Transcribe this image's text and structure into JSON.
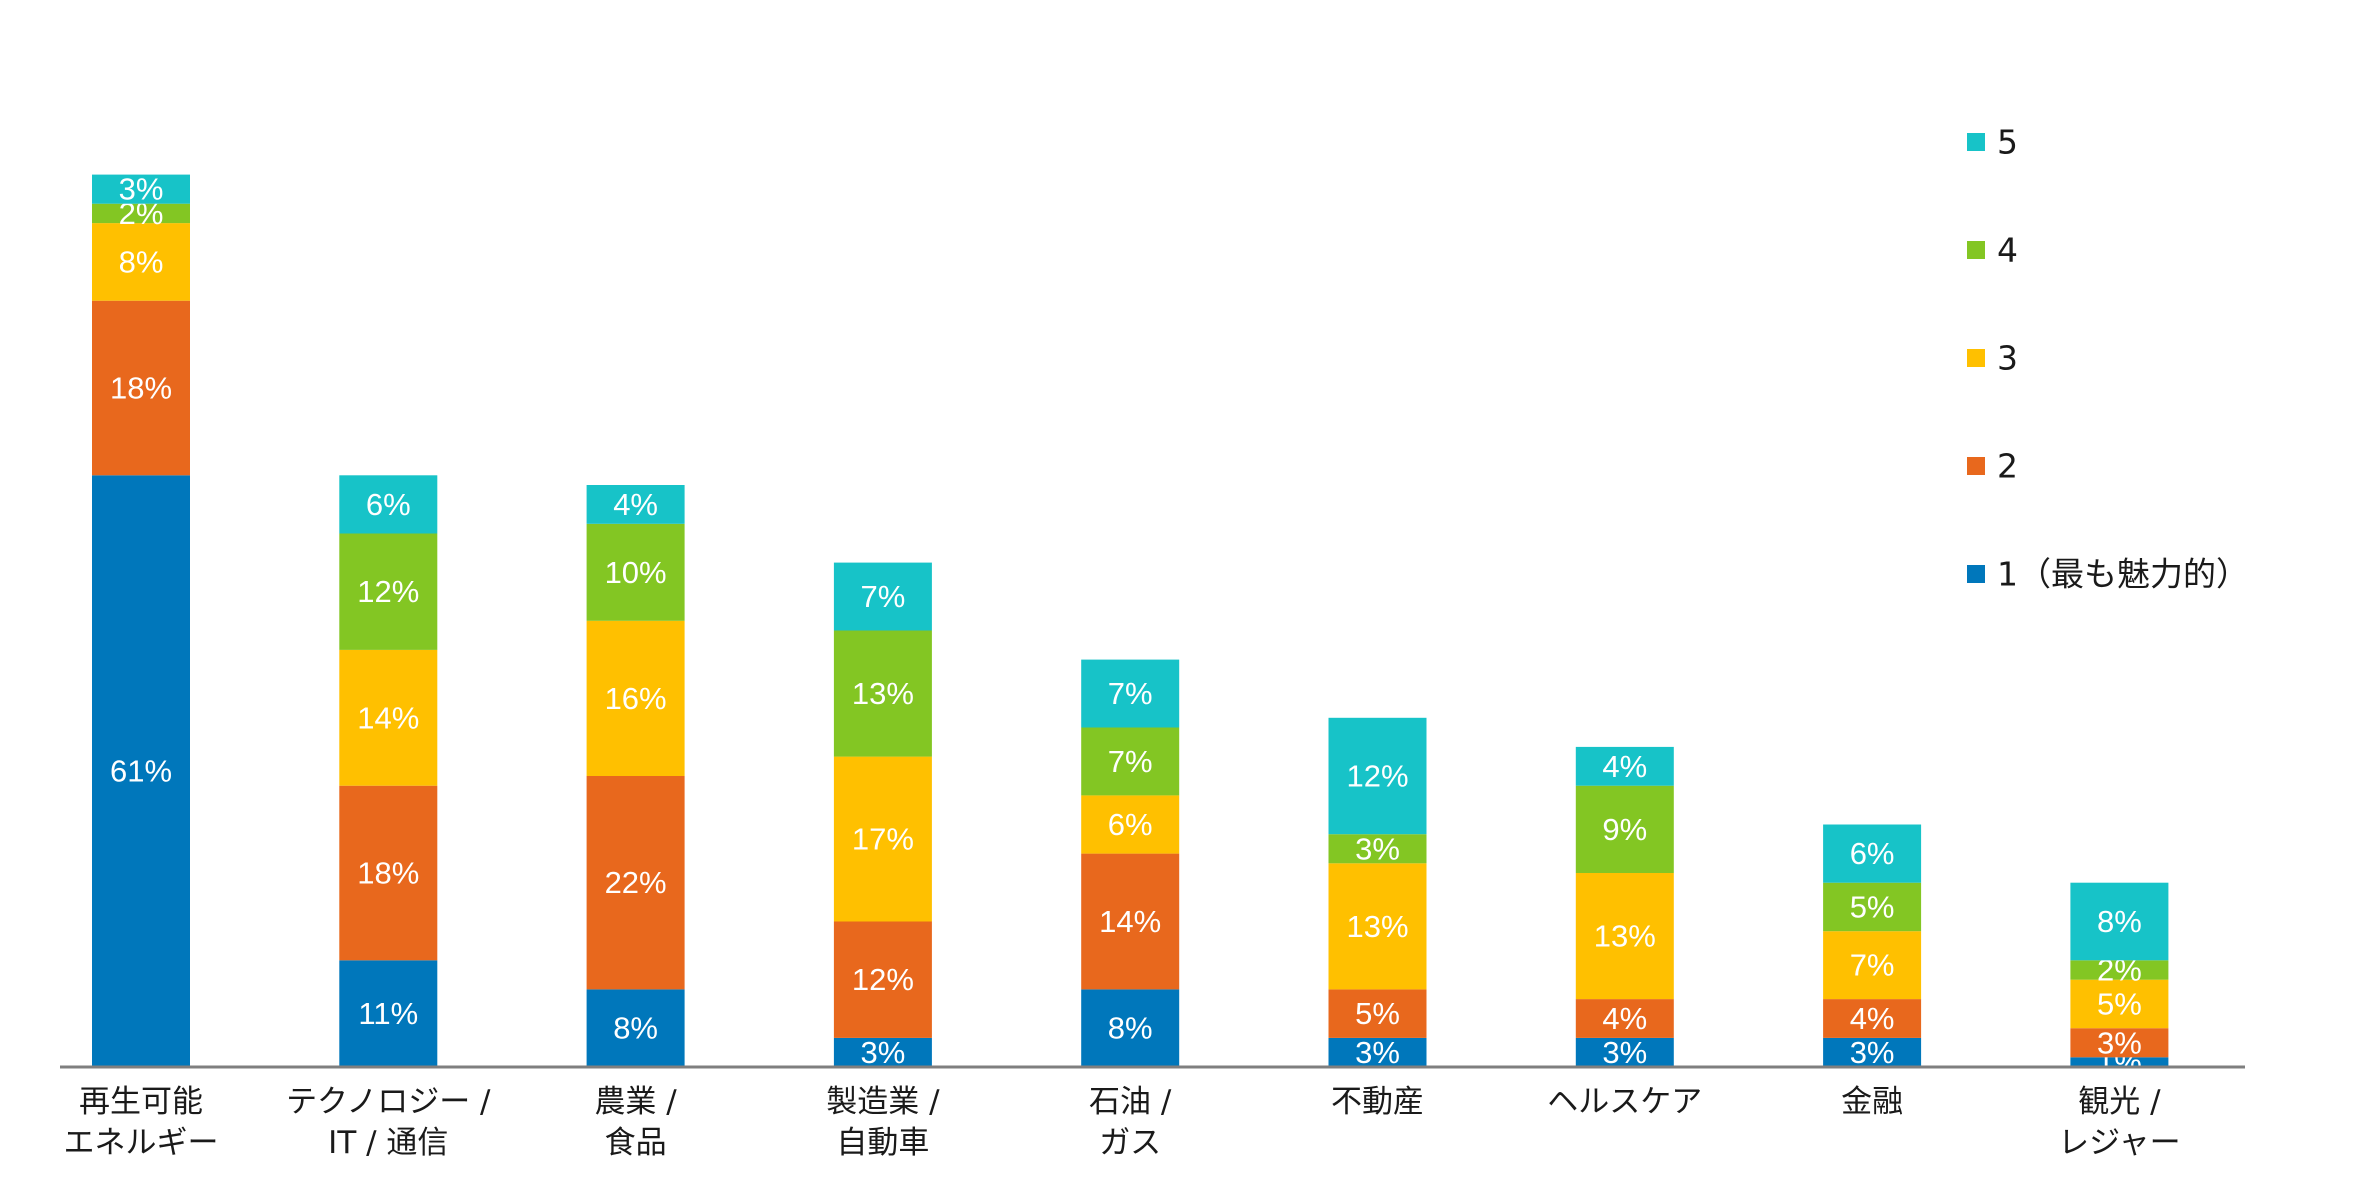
{
  "chart_data": {
    "type": "bar",
    "stacked": true,
    "title": "",
    "xlabel": "",
    "ylabel": "",
    "ylim": [
      0,
      100
    ],
    "categories": [
      [
        "再生可能",
        "エネルギー"
      ],
      [
        "テクノロジー /",
        "IT / 通信"
      ],
      [
        "農業 /",
        "食品"
      ],
      [
        "製造業 /",
        "自動車"
      ],
      [
        "石油 /",
        "ガス"
      ],
      [
        "不動産"
      ],
      [
        "ヘルスケア"
      ],
      [
        "金融"
      ],
      [
        "観光 /",
        "レジャー"
      ]
    ],
    "series": [
      {
        "name": "1（最も魅力的）",
        "color": "#0077BB",
        "values": [
          61,
          11,
          8,
          3,
          8,
          3,
          3,
          3,
          1
        ]
      },
      {
        "name": "2",
        "color": "#E8681D",
        "values": [
          18,
          18,
          22,
          12,
          14,
          5,
          4,
          4,
          3
        ]
      },
      {
        "name": "3",
        "color": "#FFC000",
        "values": [
          8,
          14,
          16,
          17,
          6,
          13,
          13,
          7,
          5
        ]
      },
      {
        "name": "4",
        "color": "#83C623",
        "values": [
          2,
          12,
          10,
          13,
          7,
          3,
          9,
          5,
          2
        ]
      },
      {
        "name": "5",
        "color": "#17C3C8",
        "values": [
          3,
          6,
          4,
          7,
          7,
          12,
          4,
          6,
          8
        ]
      }
    ],
    "value_suffix": "%",
    "legend_position": "right"
  },
  "axis_color": "#7f7f7f"
}
